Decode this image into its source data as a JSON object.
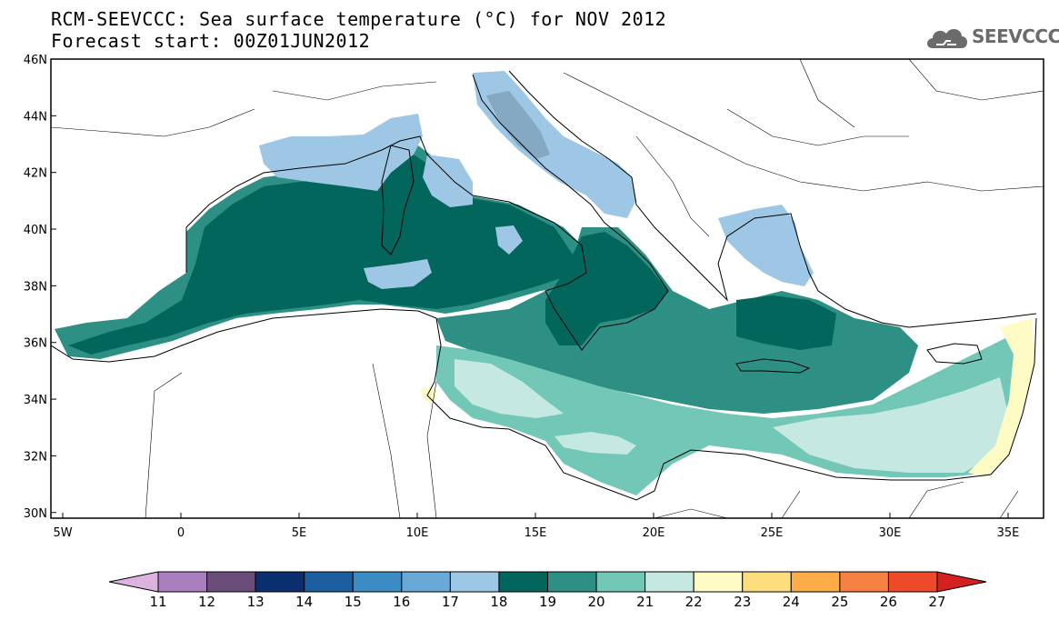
{
  "title": {
    "line1": "RCM-SEEVCCC: Sea surface temperature (°C) for NOV 2012",
    "line2": "Forecast start: 00Z01JUN2012"
  },
  "logo": {
    "text": "SEEVCCC",
    "icon": "cloud-icon"
  },
  "map": {
    "lon_range": [
      -5.5,
      36.5
    ],
    "lat_range": [
      29.8,
      46
    ],
    "x_ticks": [
      {
        "lon": -5,
        "label": "5W"
      },
      {
        "lon": 0,
        "label": "0"
      },
      {
        "lon": 5,
        "label": "5E"
      },
      {
        "lon": 10,
        "label": "10E"
      },
      {
        "lon": 15,
        "label": "15E"
      },
      {
        "lon": 20,
        "label": "20E"
      },
      {
        "lon": 25,
        "label": "25E"
      },
      {
        "lon": 30,
        "label": "30E"
      },
      {
        "lon": 35,
        "label": "35E"
      }
    ],
    "y_ticks": [
      {
        "lat": 30,
        "label": "30N"
      },
      {
        "lat": 32,
        "label": "32N"
      },
      {
        "lat": 34,
        "label": "34N"
      },
      {
        "lat": 36,
        "label": "36N"
      },
      {
        "lat": 38,
        "label": "38N"
      },
      {
        "lat": 40,
        "label": "40N"
      },
      {
        "lat": 42,
        "label": "42N"
      },
      {
        "lat": 44,
        "label": "44N"
      },
      {
        "lat": 46,
        "label": "46N"
      }
    ]
  },
  "colorbar": {
    "labels": [
      "11",
      "12",
      "13",
      "14",
      "15",
      "16",
      "17",
      "18",
      "19",
      "20",
      "21",
      "22",
      "23",
      "24",
      "25",
      "26",
      "27"
    ],
    "colors": [
      "#dcb3e0",
      "#a97fc0",
      "#6a4d78",
      "#0a2e6e",
      "#1d5f9e",
      "#3c8cc4",
      "#69a9d8",
      "#9dc7e4",
      "#03665d",
      "#2e8f85",
      "#72c7b7",
      "#c5e9e0",
      "#fefbc4",
      "#fdde7f",
      "#fcac48",
      "#f68142",
      "#ec4a2b",
      "#d42020"
    ]
  },
  "sst_colors": {
    "c17": "#9dc7e4",
    "c18": "#03665d",
    "c19": "#2e8f85",
    "c20": "#72c7b7",
    "c21": "#c5e9e0",
    "c22": "#fefbc4"
  }
}
